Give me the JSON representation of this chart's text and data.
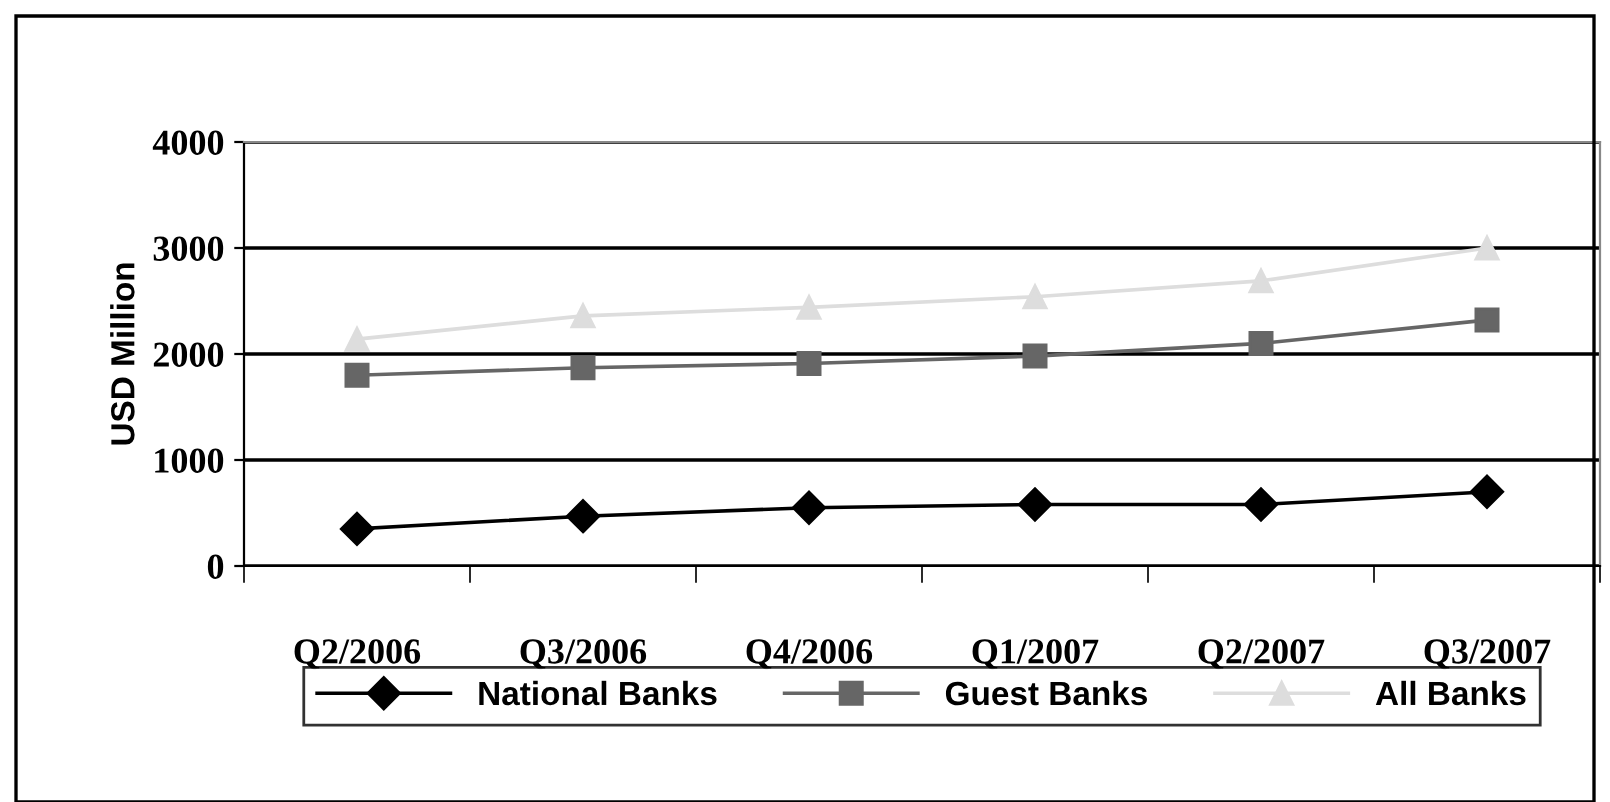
{
  "chart_data": {
    "type": "line",
    "ylabel": "USD Million",
    "categories": [
      "Q2/2006",
      "Q3/2006",
      "Q4/2006",
      "Q1/2007",
      "Q2/2007",
      "Q3/2007"
    ],
    "series": [
      {
        "name": "National Banks",
        "color": "#000000",
        "marker": "diamond",
        "values": [
          350,
          470,
          550,
          580,
          580,
          700
        ]
      },
      {
        "name": "Guest Banks",
        "color": "#666666",
        "marker": "square",
        "values": [
          1800,
          1870,
          1910,
          1980,
          2100,
          2320
        ]
      },
      {
        "name": "All Banks",
        "color": "#dddddd",
        "marker": "triangle",
        "values": [
          2140,
          2360,
          2440,
          2540,
          2690,
          3000
        ]
      }
    ],
    "ylim": [
      0,
      4000
    ],
    "yticks": [
      0,
      1000,
      2000,
      3000,
      4000
    ],
    "grid": "y",
    "legend": "bottom",
    "line_style": "solid"
  }
}
